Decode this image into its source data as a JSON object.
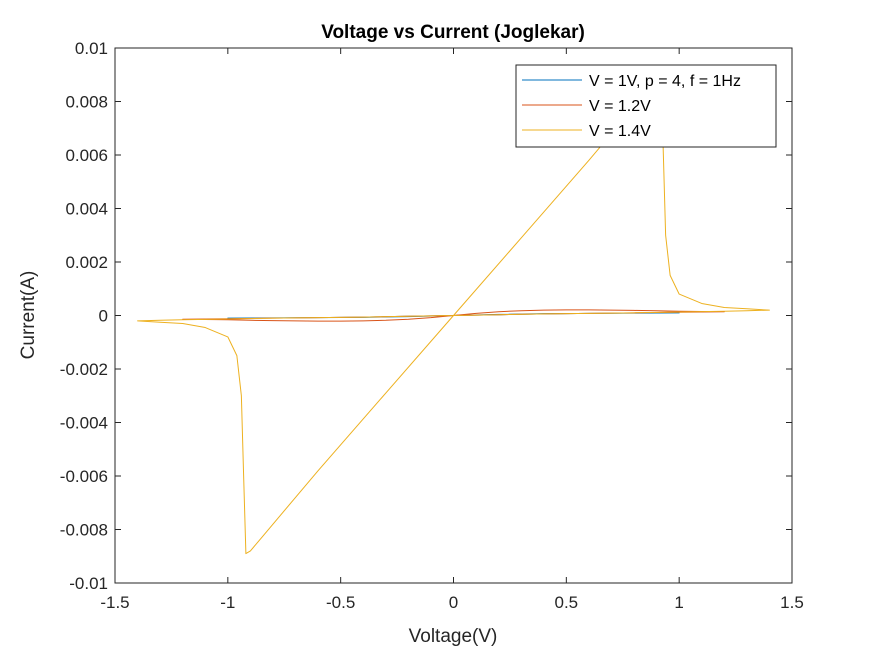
{
  "chart_data": {
    "type": "line",
    "title": "Voltage vs Current (Joglekar)",
    "xlabel": "Voltage(V)",
    "ylabel": "Current(A)",
    "xlim": [
      -1.5,
      1.5
    ],
    "ylim": [
      -0.01,
      0.01
    ],
    "xticks": [
      -1.5,
      -1,
      -0.5,
      0,
      0.5,
      1,
      1.5
    ],
    "xtick_labels": [
      "-1.5",
      "-1",
      "-0.5",
      "0",
      "0.5",
      "1",
      "1.5"
    ],
    "yticks": [
      -0.01,
      -0.008,
      -0.006,
      -0.004,
      -0.002,
      0,
      0.002,
      0.004,
      0.006,
      0.008,
      0.01
    ],
    "ytick_labels": [
      "-0.01",
      "-0.008",
      "-0.006",
      "-0.004",
      "-0.002",
      "0",
      "0.002",
      "0.004",
      "0.006",
      "0.008",
      "0.01"
    ],
    "grid": false,
    "legend_position": "top-right",
    "series": [
      {
        "name": "V = 1V, p = 4, f = 1Hz",
        "color": "#0072BD",
        "x": [
          0,
          0.2,
          0.4,
          0.6,
          0.8,
          1.0,
          0.8,
          0.6,
          0.4,
          0.2,
          0,
          -0.2,
          -0.4,
          -0.6,
          -0.8,
          -1.0,
          -0.8,
          -0.6,
          -0.4,
          -0.2,
          0
        ],
        "y": [
          0,
          3e-05,
          6e-05,
          8e-05,
          9e-05,
          0.0001,
          9e-05,
          8e-05,
          7e-05,
          4e-05,
          0,
          -3e-05,
          -6e-05,
          -8e-05,
          -9e-05,
          -0.0001,
          -9e-05,
          -8e-05,
          -7e-05,
          -4e-05,
          0
        ]
      },
      {
        "name": "V = 1.2V",
        "color": "#D95319",
        "x": [
          0,
          0.1,
          0.2,
          0.3,
          0.4,
          0.5,
          0.6,
          0.7,
          0.8,
          0.9,
          1.0,
          1.1,
          1.2,
          1.1,
          1.0,
          0.8,
          0.6,
          0.4,
          0.2,
          0,
          -0.1,
          -0.2,
          -0.3,
          -0.4,
          -0.5,
          -0.6,
          -0.7,
          -0.8,
          -0.9,
          -1.0,
          -1.1,
          -1.2,
          -1.1,
          -1.0,
          -0.8,
          -0.6,
          -0.4,
          -0.2,
          0
        ],
        "y": [
          0,
          8e-05,
          0.00014,
          0.00018,
          0.0002,
          0.00021,
          0.00021,
          0.0002,
          0.00019,
          0.00018,
          0.00016,
          0.00015,
          0.00014,
          0.00013,
          0.00012,
          0.0001,
          8e-05,
          6e-05,
          3e-05,
          0,
          -8e-05,
          -0.00014,
          -0.00018,
          -0.0002,
          -0.00021,
          -0.00021,
          -0.0002,
          -0.00019,
          -0.00018,
          -0.00016,
          -0.00015,
          -0.00014,
          -0.00013,
          -0.00012,
          -0.0001,
          -8e-05,
          -6e-05,
          -3e-05,
          0
        ]
      },
      {
        "name": "V = 1.4V",
        "color": "#EDB120",
        "x": [
          0,
          0.3,
          0.6,
          0.85,
          0.9,
          0.92,
          0.93,
          0.94,
          0.96,
          1.0,
          1.1,
          1.2,
          1.3,
          1.4,
          1.3,
          1.2,
          1.0,
          0.8,
          0.6,
          0.4,
          0.2,
          0,
          -0.3,
          -0.6,
          -0.85,
          -0.9,
          -0.92,
          -0.93,
          -0.94,
          -0.96,
          -1.0,
          -1.1,
          -1.2,
          -1.3,
          -1.4,
          -1.3,
          -1.2,
          -1.0,
          -0.8,
          -0.6,
          -0.4,
          -0.2,
          0
        ],
        "y": [
          0,
          0.0029,
          0.0058,
          0.0083,
          0.0088,
          0.0089,
          0.006,
          0.003,
          0.0015,
          0.0008,
          0.00045,
          0.0003,
          0.00025,
          0.0002,
          0.00018,
          0.00016,
          0.00013,
          0.0001,
          8e-05,
          6e-05,
          3e-05,
          0,
          -0.0029,
          -0.0058,
          -0.0083,
          -0.0088,
          -0.0089,
          -0.006,
          -0.003,
          -0.0015,
          -0.0008,
          -0.00045,
          -0.0003,
          -0.00025,
          -0.0002,
          -0.00018,
          -0.00016,
          -0.00013,
          -0.0001,
          -8e-05,
          -6e-05,
          -3e-05,
          0
        ]
      }
    ]
  }
}
